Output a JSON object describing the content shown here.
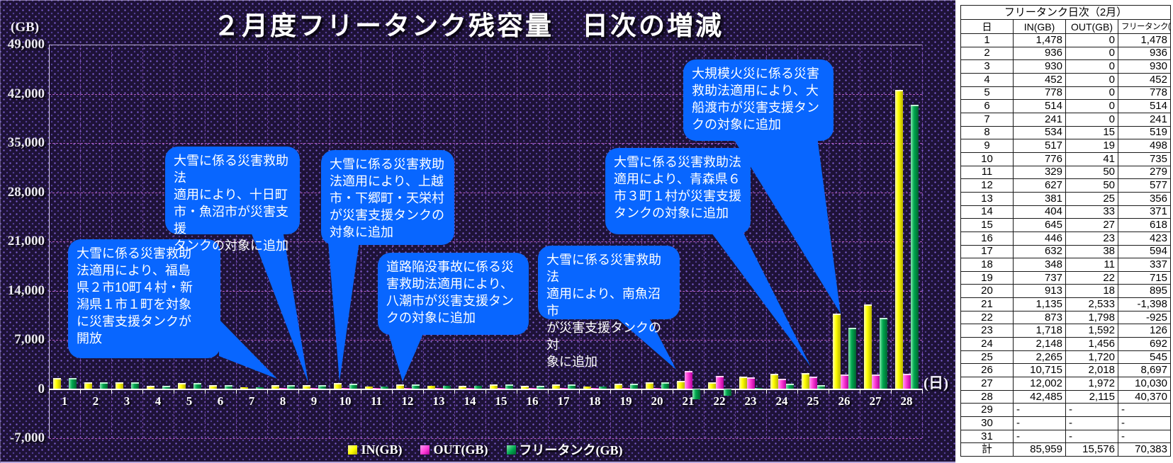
{
  "chart": {
    "title": "２月度フリータンク残容量　日次の増減",
    "unit_label": "(GB)",
    "x_unit_label": "(日)",
    "y_ticks": [
      "49,000",
      "42,000",
      "35,000",
      "28,000",
      "21,000",
      "14,000",
      "7,000",
      "0",
      "-7,000"
    ],
    "annotations": [
      "大雪に係る災害救助\n法適用により、福島\n県２市10町４村・新\n潟県１市１町を対象\nに災害支援タンクが\n開放",
      "大雪に係る災害救助法\n適用により、十日町\n市・魚沼市が災害支援\nタンクの対象に追加",
      "大雪に係る災害救助\n法適用により、上越\n市・下郷町・天栄村\nが災害支援タンクの\n対象に追加",
      "道路陥没事故に係る災\n害救助法適用により、\n八潮市が災害支援タン\nクの対象に追加",
      "大雪に係る災害救助法\n適用により、南魚沼市\nが災害支援タンクの対\n象に追加",
      "大雪に係る災害救助法\n適用により、青森県６\n市３町１村が災害支援\nタンクの対象に追加",
      "大規模火災に係る災害\n救助法適用により、大\n船渡市が災害支援タン\nクの対象に追加"
    ],
    "callout_color": "#0866ff"
  },
  "chart_data": {
    "type": "bar",
    "title": "２月度フリータンク残容量　日次の増減",
    "xlabel": "(日)",
    "ylabel": "(GB)",
    "ylim": [
      -7000,
      49000
    ],
    "ytick_step": 7000,
    "grid": true,
    "legend_position": "bottom",
    "categories": [
      1,
      2,
      3,
      4,
      5,
      6,
      7,
      8,
      9,
      10,
      11,
      12,
      13,
      14,
      15,
      16,
      17,
      18,
      19,
      20,
      21,
      22,
      23,
      24,
      25,
      26,
      27,
      28
    ],
    "series": [
      {
        "name": "IN(GB)",
        "color": "#ffff00",
        "values": [
          1478,
          936,
          930,
          452,
          778,
          514,
          241,
          534,
          517,
          776,
          329,
          627,
          381,
          404,
          645,
          446,
          632,
          348,
          737,
          913,
          1135,
          873,
          1718,
          2148,
          2265,
          10715,
          12002,
          42485
        ]
      },
      {
        "name": "OUT(GB)",
        "color": "#ff3fd8",
        "values": [
          0,
          0,
          0,
          0,
          0,
          0,
          0,
          15,
          19,
          41,
          50,
          50,
          25,
          33,
          27,
          23,
          38,
          11,
          22,
          18,
          2533,
          1798,
          1592,
          1456,
          1720,
          2018,
          1972,
          2115
        ]
      },
      {
        "name": "フリータンク(GB)",
        "color": "#00a84f",
        "values": [
          1478,
          936,
          930,
          452,
          778,
          514,
          241,
          519,
          498,
          735,
          279,
          577,
          356,
          371,
          618,
          423,
          594,
          337,
          715,
          895,
          -1398,
          -925,
          126,
          692,
          545,
          8697,
          10030,
          40370
        ]
      }
    ]
  },
  "table": {
    "title": "フリータンク日次（2月）",
    "columns": [
      "日",
      "IN(GB)",
      "OUT(GB)",
      "フリータンク(GB)"
    ],
    "rows": [
      [
        "1",
        "1,478",
        "0",
        "1,478"
      ],
      [
        "2",
        "936",
        "0",
        "936"
      ],
      [
        "3",
        "930",
        "0",
        "930"
      ],
      [
        "4",
        "452",
        "0",
        "452"
      ],
      [
        "5",
        "778",
        "0",
        "778"
      ],
      [
        "6",
        "514",
        "0",
        "514"
      ],
      [
        "7",
        "241",
        "0",
        "241"
      ],
      [
        "8",
        "534",
        "15",
        "519"
      ],
      [
        "9",
        "517",
        "19",
        "498"
      ],
      [
        "10",
        "776",
        "41",
        "735"
      ],
      [
        "11",
        "329",
        "50",
        "279"
      ],
      [
        "12",
        "627",
        "50",
        "577"
      ],
      [
        "13",
        "381",
        "25",
        "356"
      ],
      [
        "14",
        "404",
        "33",
        "371"
      ],
      [
        "15",
        "645",
        "27",
        "618"
      ],
      [
        "16",
        "446",
        "23",
        "423"
      ],
      [
        "17",
        "632",
        "38",
        "594"
      ],
      [
        "18",
        "348",
        "11",
        "337"
      ],
      [
        "19",
        "737",
        "22",
        "715"
      ],
      [
        "20",
        "913",
        "18",
        "895"
      ],
      [
        "21",
        "1,135",
        "2,533",
        "-1,398"
      ],
      [
        "22",
        "873",
        "1,798",
        "-925"
      ],
      [
        "23",
        "1,718",
        "1,592",
        "126"
      ],
      [
        "24",
        "2,148",
        "1,456",
        "692"
      ],
      [
        "25",
        "2,265",
        "1,720",
        "545"
      ],
      [
        "26",
        "10,715",
        "2,018",
        "8,697"
      ],
      [
        "27",
        "12,002",
        "1,972",
        "10,030"
      ],
      [
        "28",
        "42,485",
        "2,115",
        "40,370"
      ],
      [
        "29",
        "-",
        "-",
        "-"
      ],
      [
        "30",
        "-",
        "-",
        "-"
      ],
      [
        "31",
        "-",
        "-",
        "-"
      ],
      [
        "計",
        "85,959",
        "15,576",
        "70,383"
      ]
    ]
  }
}
